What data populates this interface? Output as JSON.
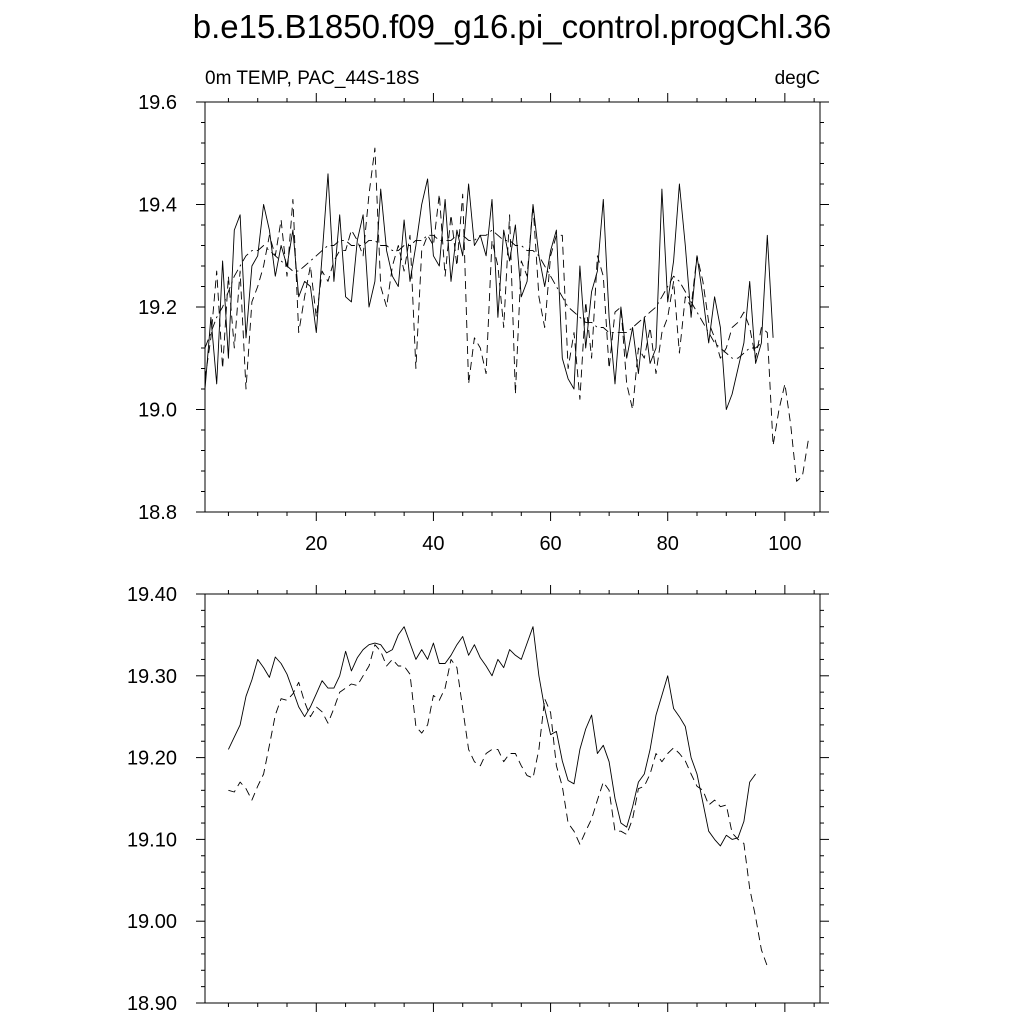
{
  "title": "b.e15.B1850.f09_g16.pi_control.progChl.36",
  "chart_data": [
    {
      "type": "line",
      "left_label": "0m TEMP, PAC_44S-18S",
      "right_label": "degC",
      "xlim": [
        1,
        106
      ],
      "ylim": [
        18.8,
        19.6
      ],
      "x_ticks": [
        20,
        40,
        60,
        80,
        100
      ],
      "x_tick_labels": [
        "20",
        "40",
        "60",
        "80",
        "100"
      ],
      "y_ticks": [
        18.8,
        19.0,
        19.2,
        19.4,
        19.6
      ],
      "y_tick_labels": [
        "18.8",
        "19.0",
        "19.2",
        "19.4",
        "19.6"
      ],
      "series": [
        {
          "style": "solid",
          "x_start": 1,
          "values": [
            19.04,
            19.18,
            19.05,
            19.29,
            19.1,
            19.35,
            19.38,
            19.14,
            19.28,
            19.3,
            19.4,
            19.35,
            19.26,
            19.32,
            19.28,
            19.35,
            19.22,
            19.25,
            19.24,
            19.15,
            19.3,
            19.46,
            19.25,
            19.38,
            19.22,
            19.21,
            19.33,
            19.38,
            19.2,
            19.25,
            19.43,
            19.31,
            19.26,
            19.24,
            19.37,
            19.25,
            19.32,
            19.4,
            19.45,
            19.3,
            19.28,
            19.41,
            19.25,
            19.35,
            19.3,
            19.44,
            19.32,
            19.34,
            19.3,
            19.41,
            19.18,
            19.35,
            19.29,
            19.36,
            19.22,
            19.25,
            19.4,
            19.3,
            19.24,
            19.31,
            19.35,
            19.1,
            19.06,
            19.04,
            19.28,
            19.12,
            19.23,
            19.27,
            19.41,
            19.18,
            19.05,
            19.2,
            19.1,
            19.16,
            19.07,
            19.18,
            19.09,
            19.12,
            19.43,
            19.21,
            19.29,
            19.44,
            19.32,
            19.18,
            19.3,
            19.22,
            19.13,
            19.22,
            19.16,
            19.0,
            19.03,
            19.08,
            19.13,
            19.25,
            19.09,
            19.13,
            19.34,
            19.14
          ]
        },
        {
          "style": "dashed",
          "x_start": 1,
          "values": [
            19.06,
            19.14,
            19.27,
            19.08,
            19.26,
            19.12,
            19.27,
            19.04,
            19.21,
            19.24,
            19.28,
            19.34,
            19.3,
            19.37,
            19.26,
            19.41,
            19.15,
            19.22,
            19.28,
            19.18,
            19.27,
            19.25,
            19.29,
            19.31,
            19.31,
            19.35,
            19.33,
            19.3,
            19.42,
            19.51,
            19.24,
            19.2,
            19.28,
            19.32,
            19.27,
            19.34,
            19.08,
            19.31,
            19.34,
            19.32,
            19.42,
            19.26,
            19.38,
            19.28,
            19.42,
            19.05,
            19.14,
            19.12,
            19.07,
            19.33,
            19.28,
            19.16,
            19.38,
            19.03,
            19.29,
            19.26,
            19.4,
            19.22,
            19.16,
            19.3,
            19.34,
            19.34,
            19.08,
            19.15,
            19.02,
            19.21,
            19.1,
            19.3,
            19.26,
            19.08,
            19.19,
            19.2,
            19.05,
            19.0,
            19.12,
            19.1,
            19.16,
            19.07,
            19.15,
            19.18,
            19.25,
            19.11,
            19.22,
            19.2,
            19.3,
            19.25,
            19.17,
            19.14,
            19.1,
            19.12,
            19.16,
            19.17,
            19.19,
            19.16,
            19.1,
            19.16,
            19.15,
            18.93,
            19.0,
            19.05,
            18.97,
            18.86,
            18.87,
            18.94
          ]
        },
        {
          "style": "dashdot",
          "x_start": 1,
          "values": [
            19.12,
            19.15,
            19.18,
            19.2,
            19.23,
            19.26,
            19.28,
            19.3,
            19.31,
            19.31,
            19.32,
            19.31,
            19.3,
            19.29,
            19.28,
            19.27,
            19.27,
            19.28,
            19.29,
            19.3,
            19.31,
            19.32,
            19.32,
            19.33,
            19.33,
            19.32,
            19.32,
            19.32,
            19.33,
            19.33,
            19.32,
            19.32,
            19.31,
            19.31,
            19.32,
            19.32,
            19.33,
            19.33,
            19.34,
            19.34,
            19.33,
            19.33,
            19.33,
            19.34,
            19.34,
            19.33,
            19.33,
            19.34,
            19.34,
            19.35,
            19.34,
            19.33,
            19.33,
            19.32,
            19.32,
            19.31,
            19.31,
            19.3,
            19.28,
            19.26,
            19.24,
            19.22,
            19.2,
            19.19,
            19.18,
            19.17,
            19.17,
            19.16,
            19.16,
            19.15,
            19.15,
            19.15,
            19.15,
            19.16,
            19.17,
            19.18,
            19.19,
            19.2,
            19.22,
            19.24,
            19.26,
            19.25,
            19.23,
            19.21,
            19.19,
            19.17,
            19.15,
            19.13,
            19.12,
            19.11,
            19.1,
            19.1,
            19.11,
            19.12,
            19.12,
            19.13
          ]
        }
      ]
    },
    {
      "type": "line",
      "xlim": [
        1,
        106
      ],
      "ylim": [
        18.9,
        19.4
      ],
      "x_ticks": [
        20,
        40,
        60,
        80,
        100
      ],
      "y_ticks": [
        18.9,
        19.0,
        19.1,
        19.2,
        19.3,
        19.4
      ],
      "y_tick_labels": [
        "18.90",
        "19.00",
        "19.10",
        "19.20",
        "19.30",
        "19.40"
      ],
      "series": [
        {
          "style": "solid",
          "x_start": 5,
          "values": [
            19.21,
            19.225,
            19.24,
            19.275,
            19.295,
            19.32,
            19.31,
            19.298,
            19.323,
            19.315,
            19.302,
            19.282,
            19.262,
            19.25,
            19.262,
            19.278,
            19.294,
            19.285,
            19.285,
            19.3,
            19.33,
            19.306,
            19.322,
            19.332,
            19.338,
            19.34,
            19.338,
            19.328,
            19.332,
            19.35,
            19.36,
            19.34,
            19.32,
            19.332,
            19.32,
            19.34,
            19.315,
            19.315,
            19.325,
            19.338,
            19.348,
            19.325,
            19.338,
            19.322,
            19.312,
            19.3,
            19.32,
            19.31,
            19.332,
            19.325,
            19.32,
            19.34,
            19.36,
            19.3,
            19.26,
            19.228,
            19.232,
            19.196,
            19.172,
            19.168,
            19.21,
            19.235,
            19.252,
            19.205,
            19.215,
            19.195,
            19.15,
            19.12,
            19.115,
            19.14,
            19.17,
            19.18,
            19.21,
            19.252,
            19.276,
            19.3,
            19.26,
            19.25,
            19.238,
            19.2,
            19.18,
            19.145,
            19.11,
            19.1,
            19.092,
            19.105,
            19.1,
            19.102,
            19.122,
            19.17,
            19.18
          ]
        },
        {
          "style": "dashed",
          "x_start": 5,
          "values": [
            19.16,
            19.158,
            19.17,
            19.162,
            19.148,
            19.165,
            19.18,
            19.215,
            19.252,
            19.272,
            19.27,
            19.278,
            19.292,
            19.268,
            19.25,
            19.262,
            19.256,
            19.242,
            19.26,
            19.28,
            19.285,
            19.29,
            19.288,
            19.3,
            19.312,
            19.338,
            19.33,
            19.312,
            19.32,
            19.312,
            19.312,
            19.302,
            19.238,
            19.23,
            19.24,
            19.276,
            19.27,
            19.285,
            19.32,
            19.31,
            19.26,
            19.21,
            19.195,
            19.19,
            19.205,
            19.21,
            19.21,
            19.195,
            19.205,
            19.205,
            19.19,
            19.178,
            19.175,
            19.21,
            19.272,
            19.255,
            19.19,
            19.165,
            19.12,
            19.11,
            19.094,
            19.11,
            19.125,
            19.148,
            19.17,
            19.16,
            19.11,
            19.11,
            19.106,
            19.125,
            19.162,
            19.165,
            19.18,
            19.205,
            19.195,
            19.205,
            19.212,
            19.205,
            19.196,
            19.18,
            19.165,
            19.16,
            19.142,
            19.148,
            19.14,
            19.142,
            19.108,
            19.1,
            19.095,
            19.04,
            19.005,
            18.965,
            18.945
          ]
        }
      ]
    }
  ]
}
